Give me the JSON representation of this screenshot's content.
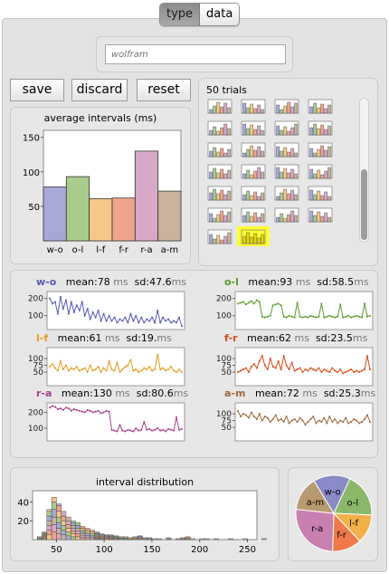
{
  "tabs": [
    {
      "label": "type"
    },
    {
      "label": "data"
    }
  ],
  "name_input": {
    "placeholder": "wolfram"
  },
  "buttons": {
    "save": "save",
    "discard": "discard",
    "reset": "reset"
  },
  "avg_chart": {
    "title": "average intervals (ms)"
  },
  "trials": {
    "label": "50 trials"
  },
  "stats": [
    {
      "code": "w-o",
      "mean": "78",
      "sd": "47.6",
      "color": "#5858b8"
    },
    {
      "code": "o-l",
      "mean": "93",
      "sd": "58.5",
      "color": "#5a9a2a"
    },
    {
      "code": "l-f",
      "mean": "61",
      "sd": "19.",
      "color": "#e89a1a"
    },
    {
      "code": "f-r",
      "mean": "62",
      "sd": "23.5",
      "color": "#d84a1a"
    },
    {
      "code": "r-a",
      "mean": "130",
      "sd": "80.6",
      "color": "#a83c88"
    },
    {
      "code": "a-m",
      "mean": "72",
      "sd": "25.3",
      "color": "#9a6a3a"
    }
  ],
  "labels": {
    "mean": "mean:",
    "sd": "sd:",
    "ms": "ms"
  },
  "dist": {
    "title": "interval distribution"
  },
  "pie_labels": [
    "w-o",
    "o-l",
    "l-f",
    "f-r",
    "r-a",
    "a-m"
  ],
  "chart_data": [
    {
      "type": "bar",
      "title": "average intervals (ms)",
      "categories": [
        "w-o",
        "o-l",
        "l-f",
        "f-r",
        "r-a",
        "a-m"
      ],
      "values": [
        78,
        93,
        61,
        62,
        130,
        72
      ],
      "ylim": [
        0,
        160
      ],
      "yticks": [
        50,
        100,
        150
      ],
      "colors": [
        "#a8a8d8",
        "#a8cc8c",
        "#f6c888",
        "#f0a48c",
        "#d8a8c8",
        "#c8b49c"
      ]
    },
    {
      "type": "line",
      "series": [
        {
          "name": "w-o",
          "ylim": [
            20,
            240
          ],
          "yticks": [
            100,
            200
          ],
          "values": [
            200,
            170,
            180,
            110,
            210,
            140,
            190,
            110,
            180,
            120,
            160,
            130,
            180,
            100,
            140,
            80,
            120,
            90,
            130,
            70,
            110,
            70,
            100,
            70,
            90,
            60,
            80,
            70,
            90,
            60,
            110,
            70,
            100,
            60,
            90,
            60,
            80,
            70,
            90,
            60,
            130,
            60,
            90,
            70,
            80,
            60,
            70,
            60,
            90,
            40
          ]
        },
        {
          "name": "o-l",
          "ylim": [
            20,
            240
          ],
          "yticks": [
            100,
            200
          ],
          "values": [
            170,
            175,
            180,
            165,
            175,
            185,
            170,
            190,
            180,
            95,
            90,
            95,
            100,
            160,
            165,
            170,
            160,
            95,
            90,
            100,
            95,
            90,
            175,
            95,
            90,
            95,
            90,
            100,
            95,
            90,
            95,
            170,
            90,
            95,
            100,
            95,
            90,
            95,
            165,
            90,
            95,
            100,
            90,
            95,
            100,
            95,
            90,
            170,
            95,
            100
          ]
        },
        {
          "name": "l-f",
          "ylim": [
            0,
            140
          ],
          "yticks": [
            50,
            75,
            100
          ],
          "values": [
            70,
            80,
            65,
            55,
            90,
            60,
            75,
            55,
            65,
            60,
            70,
            55,
            60,
            65,
            50,
            75,
            55,
            60,
            70,
            50,
            65,
            55,
            90,
            60,
            55,
            85,
            50,
            60,
            70,
            75,
            95,
            55,
            60,
            50,
            55,
            65,
            60,
            70,
            55,
            60,
            115,
            60,
            65,
            55,
            60,
            70,
            55,
            50,
            60,
            50
          ]
        },
        {
          "name": "f-r",
          "ylim": [
            0,
            140
          ],
          "yticks": [
            50,
            75,
            100
          ],
          "values": [
            50,
            55,
            60,
            65,
            50,
            70,
            80,
            65,
            90,
            110,
            75,
            60,
            100,
            70,
            65,
            90,
            60,
            110,
            75,
            60,
            85,
            55,
            60,
            65,
            50,
            60,
            55,
            65,
            60,
            55,
            65,
            50,
            60,
            55,
            50,
            65,
            55,
            50,
            60,
            45,
            50,
            55,
            60,
            50,
            55,
            50,
            55,
            60,
            110,
            60
          ]
        },
        {
          "name": "r-a",
          "ylim": [
            20,
            260
          ],
          "yticks": [
            100,
            200
          ],
          "values": [
            230,
            240,
            235,
            220,
            225,
            215,
            230,
            225,
            210,
            220,
            215,
            210,
            205,
            200,
            215,
            210,
            200,
            205,
            210,
            195,
            200,
            210,
            205,
            90,
            85,
            80,
            120,
            85,
            80,
            90,
            85,
            80,
            100,
            85,
            90,
            140,
            90,
            95,
            85,
            90,
            100,
            85,
            90,
            80,
            95,
            90,
            85,
            170,
            90,
            95
          ]
        },
        {
          "name": "a-m",
          "ylim": [
            0,
            140
          ],
          "yticks": [
            50,
            75,
            100
          ],
          "values": [
            110,
            90,
            100,
            95,
            85,
            105,
            90,
            80,
            100,
            75,
            90,
            85,
            70,
            80,
            95,
            75,
            80,
            70,
            90,
            65,
            75,
            80,
            70,
            85,
            75,
            60,
            70,
            80,
            90,
            65,
            75,
            70,
            85,
            65,
            90,
            70,
            80,
            65,
            75,
            70,
            85,
            65,
            70,
            80,
            75,
            65,
            70,
            80,
            95,
            70
          ]
        }
      ]
    },
    {
      "type": "bar",
      "title": "interval distribution",
      "xlim": [
        25,
        260
      ],
      "xticks": [
        50,
        100,
        150,
        200,
        250
      ],
      "yticks": [
        20,
        40
      ],
      "ylim": [
        0,
        52
      ],
      "values": [
        3,
        8,
        32,
        45,
        38,
        30,
        24,
        20,
        18,
        14,
        12,
        10,
        8,
        6,
        5,
        5,
        4,
        3,
        3,
        2,
        3,
        4,
        2,
        2,
        1,
        1,
        0,
        2,
        0,
        1,
        2,
        3,
        1,
        0,
        1,
        1,
        0,
        1,
        0,
        0,
        1,
        0,
        0,
        1,
        0,
        0,
        0,
        1
      ]
    },
    {
      "type": "pie",
      "categories": [
        "w-o",
        "o-l",
        "l-f",
        "f-r",
        "r-a",
        "a-m"
      ],
      "values": [
        78,
        93,
        61,
        62,
        130,
        72
      ]
    }
  ]
}
